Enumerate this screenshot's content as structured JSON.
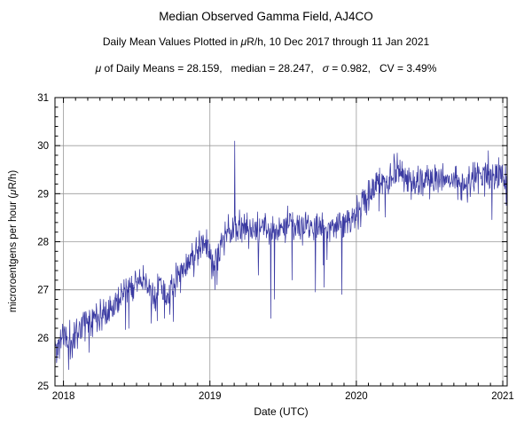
{
  "header": {
    "title": "Median Observed Gamma Field, AJ4CO",
    "subtitle_parts": [
      {
        "t": "Daily Mean Values Plotted in "
      },
      {
        "t": "μ",
        "i": true
      },
      {
        "t": "R/h, 10 Dec 2017 through 11 Jan 2021"
      }
    ],
    "stats_parts": [
      {
        "t": "μ",
        "i": true
      },
      {
        "t": " of Daily Means = 28.159,   median = 28.247,   "
      },
      {
        "t": "σ",
        "i": true
      },
      {
        "t": " = 0.982,   CV = 3.49%"
      }
    ]
  },
  "chart_data": {
    "type": "line",
    "title": "Median Observed Gamma Field, AJ4CO",
    "subtitle": "Daily Mean Values Plotted in μR/h, 10 Dec 2017 through 11 Jan 2021",
    "stats": {
      "mean_of_daily_means": 28.159,
      "median": 28.247,
      "sigma": 0.982,
      "cv_percent": 3.49
    },
    "date_range": {
      "start": "10 Dec 2017",
      "end": "11 Jan 2021"
    },
    "xlabel": "Date (UTC)",
    "ylabel": "microroentgens per hour (μR/h)",
    "ylabel_parts": [
      {
        "t": "microroentgens per hour ("
      },
      {
        "t": "μ",
        "i": true
      },
      {
        "t": "R/h)"
      }
    ],
    "xlim": [
      2017.942,
      2021.03
    ],
    "ylim": [
      25,
      31
    ],
    "x_ticks": [
      {
        "v": 2018,
        "label": "2018"
      },
      {
        "v": 2019,
        "label": "2019"
      },
      {
        "v": 2020,
        "label": "2020"
      },
      {
        "v": 2021,
        "label": "2021"
      }
    ],
    "y_ticks": [
      {
        "v": 25,
        "label": "25"
      },
      {
        "v": 26,
        "label": "26"
      },
      {
        "v": 27,
        "label": "27"
      },
      {
        "v": 28,
        "label": "28"
      },
      {
        "v": 29,
        "label": "29"
      },
      {
        "v": 30,
        "label": "30"
      },
      {
        "v": 31,
        "label": "31"
      }
    ],
    "x_minor_step": 0.0833333,
    "y_minor_step": 0.2,
    "grid": true,
    "colors": {
      "line": "#3a3aa2",
      "grid": "#9a9a9a",
      "frame": "#000000",
      "text": "#000000"
    },
    "points_per_year": 365,
    "noise_sigma": 0.17,
    "noise_seed": 11,
    "downspike": {
      "cutoff": 2020.0,
      "prob_early": 0.013,
      "prob_late": 0.004,
      "depth_min": 0.35,
      "depth_max": 1.1
    },
    "trend": [
      [
        2017.942,
        25.95
      ],
      [
        2017.955,
        25.65
      ],
      [
        2017.975,
        25.95
      ],
      [
        2018.0,
        26.1
      ],
      [
        2018.03,
        25.9
      ],
      [
        2018.08,
        26.1
      ],
      [
        2018.15,
        26.35
      ],
      [
        2018.25,
        26.5
      ],
      [
        2018.33,
        26.65
      ],
      [
        2018.42,
        26.95
      ],
      [
        2018.5,
        27.2
      ],
      [
        2018.56,
        27.1
      ],
      [
        2018.62,
        26.85
      ],
      [
        2018.66,
        27.15
      ],
      [
        2018.71,
        26.8
      ],
      [
        2018.78,
        27.25
      ],
      [
        2018.85,
        27.55
      ],
      [
        2018.92,
        27.8
      ],
      [
        2018.96,
        28.05
      ],
      [
        2019.0,
        27.75
      ],
      [
        2019.03,
        27.5
      ],
      [
        2019.08,
        28.0
      ],
      [
        2019.15,
        28.25
      ],
      [
        2019.25,
        28.3
      ],
      [
        2019.35,
        28.25
      ],
      [
        2019.45,
        28.3
      ],
      [
        2019.55,
        28.35
      ],
      [
        2019.65,
        28.3
      ],
      [
        2019.75,
        28.3
      ],
      [
        2019.85,
        28.35
      ],
      [
        2019.95,
        28.45
      ],
      [
        2020.0,
        28.55
      ],
      [
        2020.06,
        28.8
      ],
      [
        2020.12,
        29.15
      ],
      [
        2020.2,
        29.25
      ],
      [
        2020.28,
        29.4
      ],
      [
        2020.35,
        29.3
      ],
      [
        2020.45,
        29.25
      ],
      [
        2020.55,
        29.3
      ],
      [
        2020.65,
        29.25
      ],
      [
        2020.75,
        29.25
      ],
      [
        2020.85,
        29.35
      ],
      [
        2020.95,
        29.4
      ],
      [
        2021.0,
        29.35
      ],
      [
        2021.03,
        29.1
      ]
    ],
    "spikes": [
      [
        2018.045,
        25.55
      ],
      [
        2018.6,
        26.3
      ],
      [
        2018.64,
        26.35
      ],
      [
        2018.69,
        26.4
      ],
      [
        2019.035,
        27.0
      ],
      [
        2019.05,
        27.1
      ],
      [
        2019.17,
        30.1
      ],
      [
        2019.33,
        27.3
      ],
      [
        2019.415,
        26.4
      ],
      [
        2019.44,
        26.8
      ],
      [
        2019.56,
        27.2
      ],
      [
        2019.72,
        26.95
      ],
      [
        2019.78,
        27.05
      ],
      [
        2019.9,
        26.9
      ],
      [
        2020.28,
        29.85
      ],
      [
        2020.9,
        29.9
      ],
      [
        2021.025,
        28.75
      ]
    ]
  }
}
